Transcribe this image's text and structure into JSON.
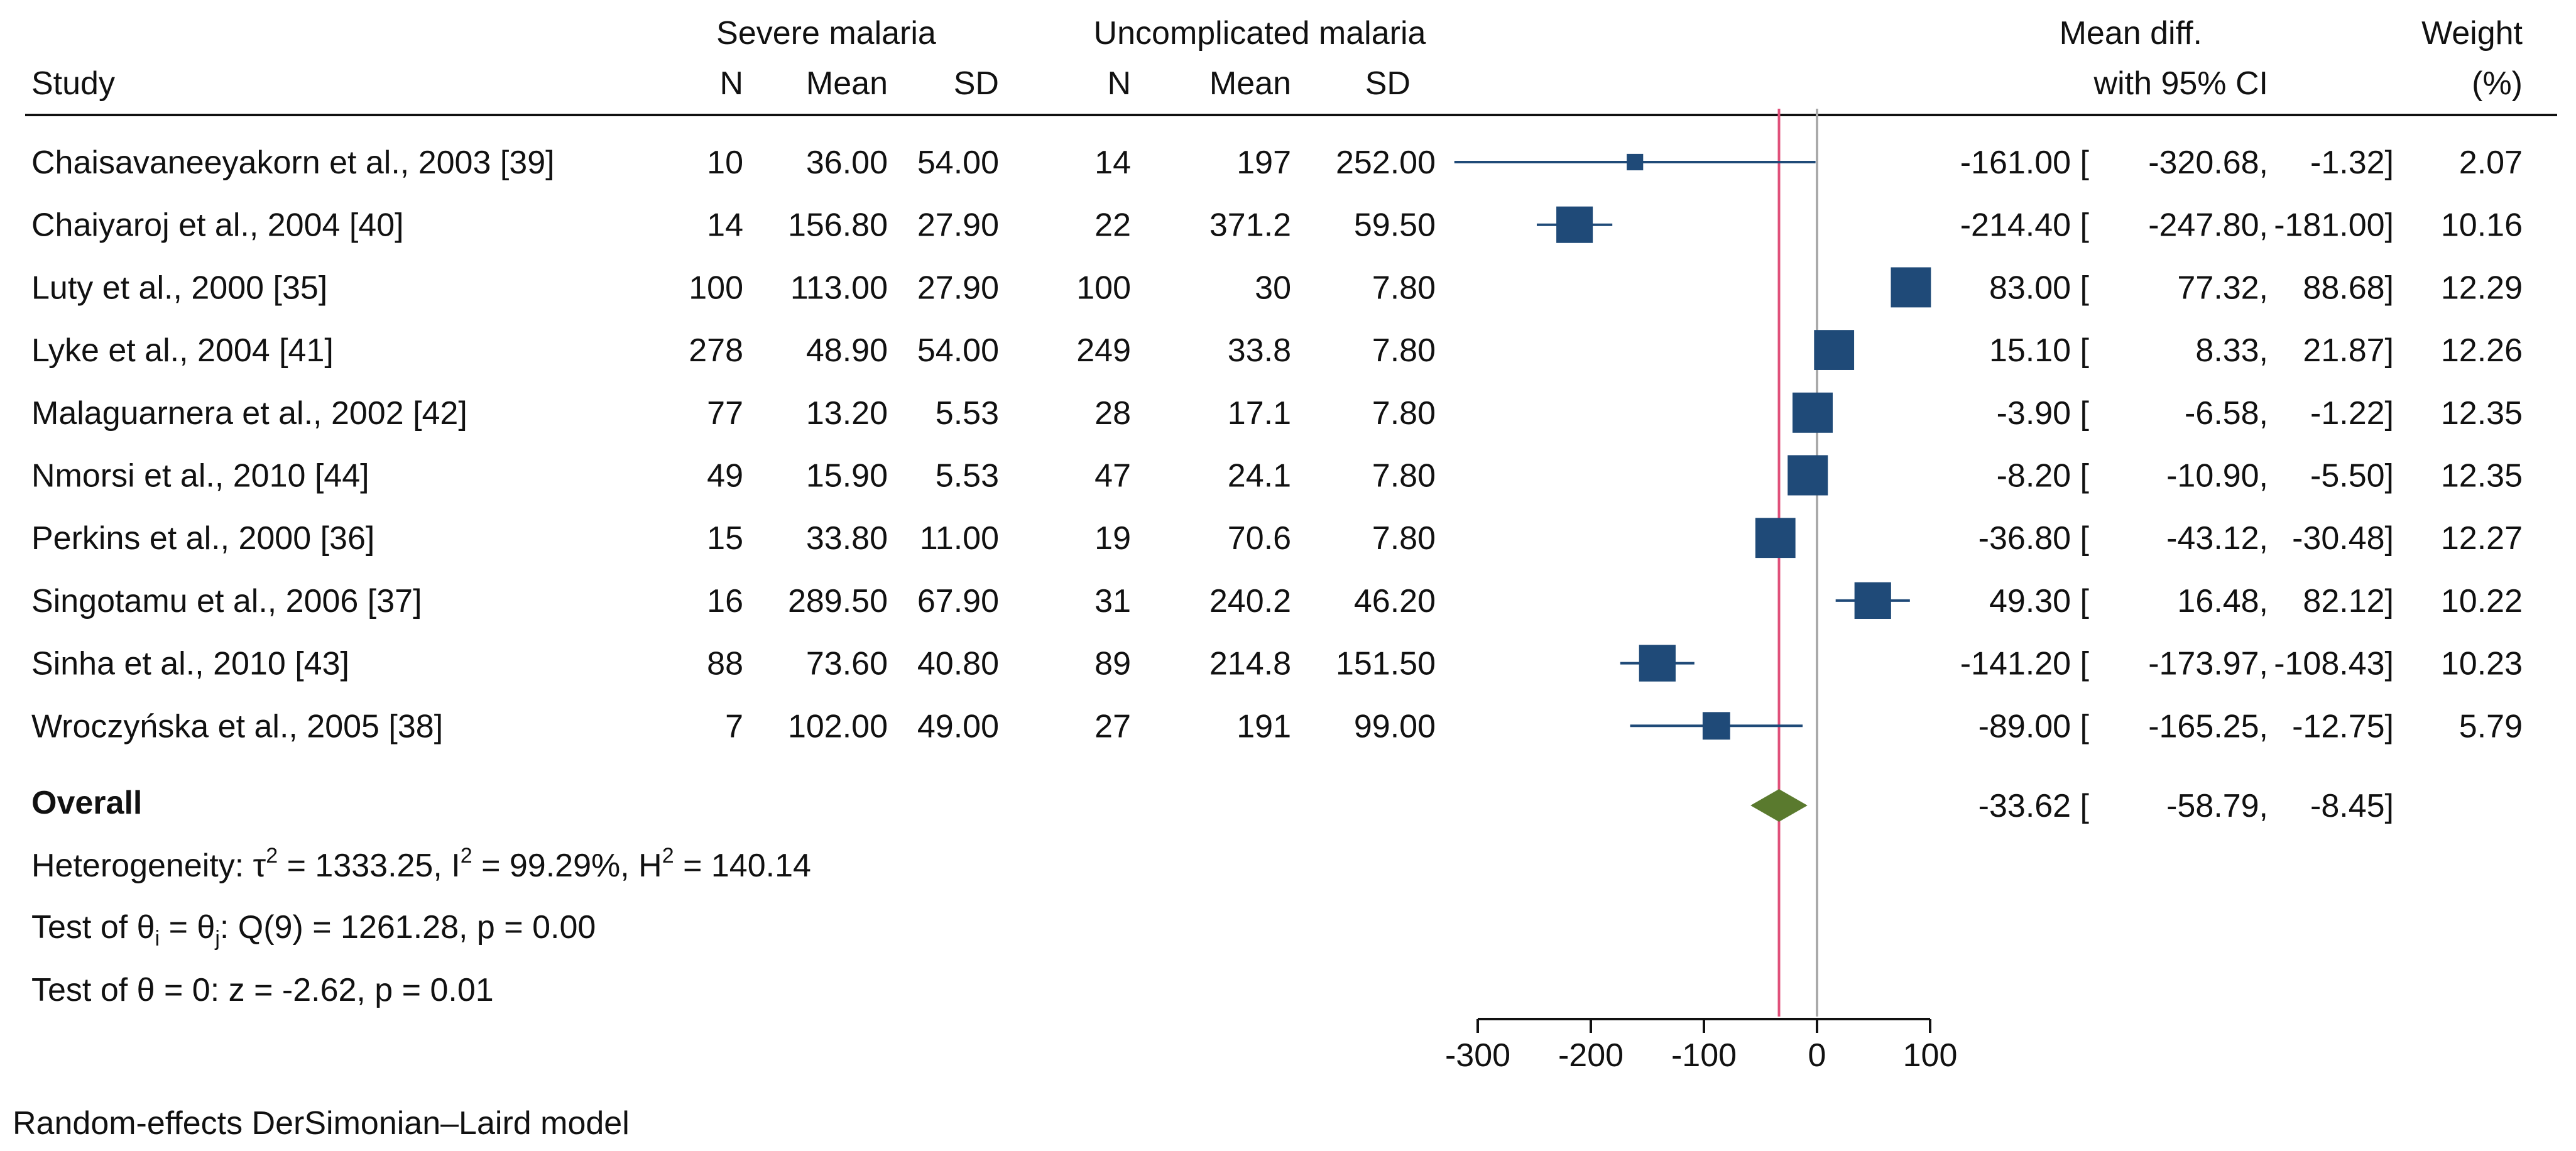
{
  "chart_data": {
    "type": "forest",
    "headers": {
      "study": "Study",
      "group1": "Severe malaria",
      "group2": "Uncomplicated malaria",
      "n": "N",
      "mean": "Mean",
      "sd": "SD",
      "effect_line1": "Mean diff.",
      "effect_line2": "with 95% CI",
      "weight_line1": "Weight",
      "weight_line2": "(%)"
    },
    "studies": [
      {
        "study": "Chaisavaneeyakorn et al., 2003 [39]",
        "n1": "10",
        "mean1": "36.00",
        "sd1": "54.00",
        "n2": "14",
        "mean2": "197",
        "sd2": "252.00",
        "md": "-161.00",
        "lo": "-320.68",
        "hi": "-1.32",
        "weight": "2.07"
      },
      {
        "study": "Chaiyaroj et al., 2004 [40]",
        "n1": "14",
        "mean1": "156.80",
        "sd1": "27.90",
        "n2": "22",
        "mean2": "371.2",
        "sd2": "59.50",
        "md": "-214.40",
        "lo": "-247.80",
        "hi": "-181.00",
        "weight": "10.16"
      },
      {
        "study": "Luty et al., 2000  [35]",
        "n1": "100",
        "mean1": "113.00",
        "sd1": "27.90",
        "n2": "100",
        "mean2": "30",
        "sd2": "7.80",
        "md": "83.00",
        "lo": "77.32",
        "hi": "88.68",
        "weight": "12.29"
      },
      {
        "study": "Lyke et al., 2004 [41]",
        "n1": "278",
        "mean1": "48.90",
        "sd1": "54.00",
        "n2": "249",
        "mean2": "33.8",
        "sd2": "7.80",
        "md": "15.10",
        "lo": "8.33",
        "hi": "21.87",
        "weight": "12.26"
      },
      {
        "study": "Malaguarnera et al., 2002 [42]",
        "n1": "77",
        "mean1": "13.20",
        "sd1": "5.53",
        "n2": "28",
        "mean2": "17.1",
        "sd2": "7.80",
        "md": "-3.90",
        "lo": "-6.58",
        "hi": "-1.22",
        "weight": "12.35"
      },
      {
        "study": "Nmorsi et al., 2010 [44]",
        "n1": "49",
        "mean1": "15.90",
        "sd1": "5.53",
        "n2": "47",
        "mean2": "24.1",
        "sd2": "7.80",
        "md": "-8.20",
        "lo": "-10.90",
        "hi": "-5.50",
        "weight": "12.35"
      },
      {
        "study": "Perkins et al., 2000 [36]",
        "n1": "15",
        "mean1": "33.80",
        "sd1": "11.00",
        "n2": "19",
        "mean2": "70.6",
        "sd2": "7.80",
        "md": "-36.80",
        "lo": "-43.12",
        "hi": "-30.48",
        "weight": "12.27"
      },
      {
        "study": "Singotamu et al., 2006 [37]",
        "n1": "16",
        "mean1": "289.50",
        "sd1": "67.90",
        "n2": "31",
        "mean2": "240.2",
        "sd2": "46.20",
        "md": "49.30",
        "lo": "16.48",
        "hi": "82.12",
        "weight": "10.22"
      },
      {
        "study": "Sinha et al., 2010 [43]",
        "n1": "88",
        "mean1": "73.60",
        "sd1": "40.80",
        "n2": "89",
        "mean2": "214.8",
        "sd2": "151.50",
        "md": "-141.20",
        "lo": "-173.97",
        "hi": "-108.43",
        "weight": "10.23"
      },
      {
        "study": "Wroczyńska et al., 2005 [38]",
        "n1": "7",
        "mean1": "102.00",
        "sd1": "49.00",
        "n2": "27",
        "mean2": "191",
        "sd2": "99.00",
        "md": "-89.00",
        "lo": "-165.25",
        "hi": "-12.75",
        "weight": "5.79"
      }
    ],
    "overall": {
      "label": "Overall",
      "md": "-33.62",
      "lo": "-58.79",
      "hi": "-8.45"
    },
    "stats": {
      "heterogeneity": {
        "prefix": "Heterogeneity: τ",
        "tau_sq_value": " = 1333.25, I",
        "i_sq_value": " = 99.29%, H",
        "h_sq_value": " = 140.14",
        "superscript": "2"
      },
      "test_equal": {
        "prefix": "Test of θ",
        "sub_i": "i",
        "middle": " = θ",
        "sub_j": "j",
        "suffix": ": Q(9) = 1261.28, p = 0.00"
      },
      "test_zero": "Test of θ = 0: z = -2.62, p = 0.01"
    },
    "x_axis": {
      "range": [
        -320,
        100
      ],
      "ticks": [
        -300,
        -200,
        -100,
        0,
        100
      ],
      "tick_labels": [
        "-300",
        "-200",
        "-100",
        "0",
        "100"
      ]
    },
    "reference_lines": {
      "null": 0,
      "overall": -33.62
    },
    "footer": "Random-effects DerSimonian–Laird model",
    "colors": {
      "marker": "#1f4a78",
      "diamond": "#5a7a2e",
      "overall_line": "#e0507a",
      "null_line": "#aaaaaa",
      "text": "#111111"
    }
  }
}
